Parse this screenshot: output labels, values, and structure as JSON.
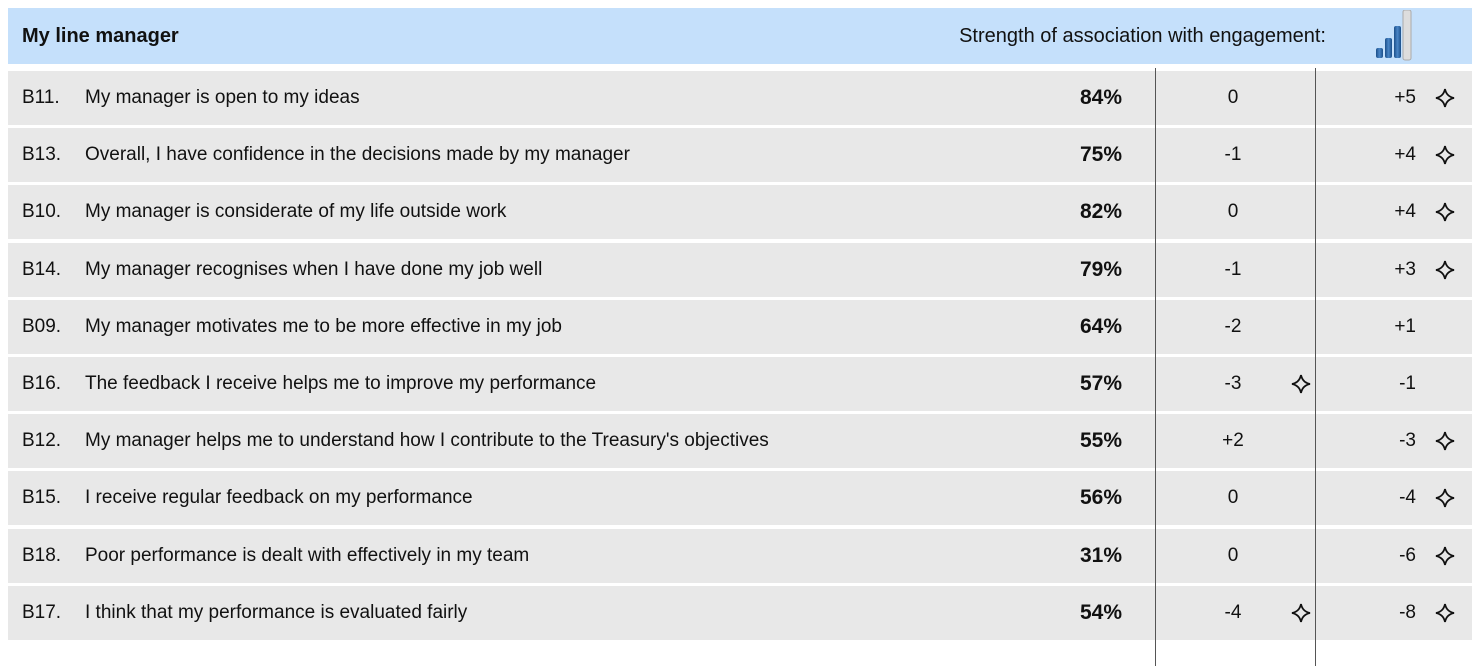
{
  "header": {
    "title": "My line manager",
    "strength_label": "Strength of association with engagement:"
  },
  "table": {
    "rows": [
      {
        "code": "B11.",
        "text": "My manager is open to my ideas",
        "score": "84%",
        "change1": "0",
        "change2": "+5",
        "stars": [
          false,
          true
        ]
      },
      {
        "code": "B13.",
        "text": "Overall, I have confidence in the decisions made by my manager",
        "score": "75%",
        "change1": "-1",
        "change2": "+4",
        "stars": [
          false,
          true
        ]
      },
      {
        "code": "B10.",
        "text": "My manager is considerate of my life outside work",
        "score": "82%",
        "change1": "0",
        "change2": "+4",
        "stars": [
          false,
          true
        ]
      },
      {
        "code": "B14.",
        "text": "My manager recognises when I have done my job well",
        "score": "79%",
        "change1": "-1",
        "change2": "+3",
        "stars": [
          false,
          true
        ]
      },
      {
        "code": "B09.",
        "text": "My manager motivates me to be more effective in my job",
        "score": "64%",
        "change1": "-2",
        "change2": "+1",
        "stars": [
          false,
          false
        ]
      },
      {
        "code": "B16.",
        "text": "The feedback I receive helps me to improve my performance",
        "score": "57%",
        "change1": "-3",
        "change2": "-1",
        "stars": [
          true,
          false
        ]
      },
      {
        "code": "B12.",
        "text": "My manager helps me to understand how I contribute to the Treasury's objectives",
        "score": "55%",
        "change1": "+2",
        "change2": "-3",
        "stars": [
          false,
          true
        ]
      },
      {
        "code": "B15.",
        "text": "I receive regular feedback on my performance",
        "score": "56%",
        "change1": "0",
        "change2": "-4",
        "stars": [
          false,
          true
        ]
      },
      {
        "code": "B18.",
        "text": "Poor performance is dealt with effectively in my team",
        "score": "31%",
        "change1": "0",
        "change2": "-6",
        "stars": [
          false,
          true
        ]
      },
      {
        "code": "B17.",
        "text": "I think that my performance is evaluated fairly",
        "score": "54%",
        "change1": "-4",
        "change2": "-8",
        "stars": [
          true,
          true
        ]
      }
    ]
  }
}
